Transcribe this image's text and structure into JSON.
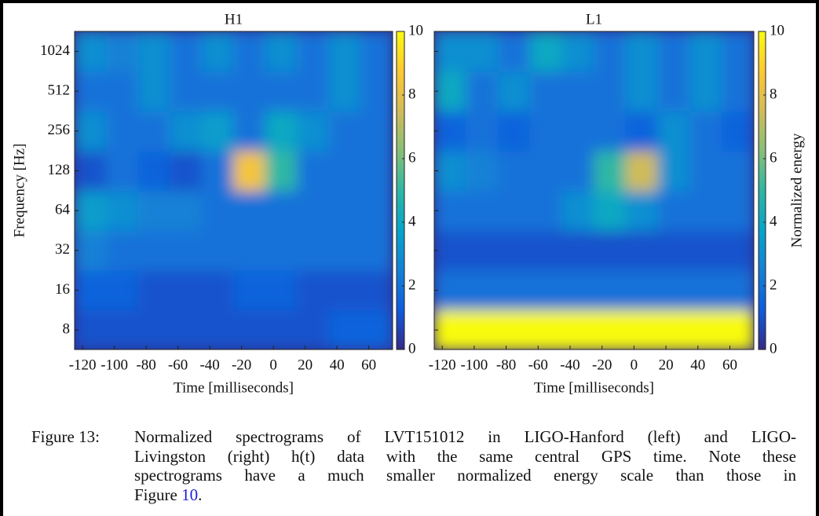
{
  "chart_data": [
    {
      "type": "heatmap",
      "title": "H1",
      "xlabel": "Time [milliseconds]",
      "ylabel": "Frequency [Hz]",
      "x": [
        -115,
        -95,
        -75,
        -55,
        -35,
        -15,
        5,
        25,
        45,
        65
      ],
      "y": [
        8,
        16,
        32,
        64,
        128,
        256,
        512,
        1024
      ],
      "z": [
        [
          1,
          1,
          1,
          1,
          1,
          1,
          1,
          1,
          1.5,
          1.5
        ],
        [
          1.5,
          1.5,
          1,
          1,
          1,
          1.5,
          1.5,
          1,
          1,
          1
        ],
        [
          2.5,
          2,
          2,
          2,
          2,
          2,
          2,
          2,
          2,
          2
        ],
        [
          3.5,
          3,
          2.5,
          2.5,
          2,
          2,
          2,
          2,
          2,
          2
        ],
        [
          1,
          2,
          1.5,
          1,
          2,
          8.5,
          5,
          2,
          2,
          2
        ],
        [
          3,
          2,
          2,
          3,
          3.5,
          2,
          4,
          3,
          2,
          2
        ],
        [
          2,
          2,
          3,
          2,
          2,
          2,
          2,
          2,
          3,
          2
        ],
        [
          3,
          2.5,
          3,
          2,
          3,
          2,
          3,
          2,
          3,
          2
        ]
      ],
      "xlim": [
        -125,
        75
      ],
      "ylim": [
        5.7,
        1450
      ],
      "log_y": true,
      "xticks": [
        -120,
        -100,
        -80,
        -60,
        -40,
        -20,
        0,
        20,
        40,
        60
      ],
      "yticks": [
        8,
        16,
        32,
        64,
        128,
        256,
        512,
        1024
      ],
      "colormap": "parula",
      "clim": [
        0,
        10
      ],
      "cticks": [
        0,
        2,
        4,
        6,
        8,
        10
      ]
    },
    {
      "type": "heatmap",
      "title": "L1",
      "xlabel": "Time [milliseconds]",
      "colorbar_label": "Normalized energy",
      "x": [
        -115,
        -95,
        -75,
        -55,
        -35,
        -15,
        5,
        25,
        45,
        65
      ],
      "y": [
        8,
        16,
        32,
        64,
        128,
        256,
        512,
        1024
      ],
      "z": [
        [
          10,
          10,
          10,
          10,
          10,
          10,
          10,
          10,
          10,
          10
        ],
        [
          2,
          2,
          2,
          2,
          2,
          2,
          2,
          2,
          2,
          2
        ],
        [
          1,
          1,
          1,
          1,
          1,
          1,
          1,
          1,
          1,
          1
        ],
        [
          2,
          2,
          2,
          2,
          3,
          4,
          3,
          2,
          2,
          2
        ],
        [
          3,
          2.5,
          2,
          2,
          2,
          5,
          7.5,
          3,
          2,
          2
        ],
        [
          1.5,
          2,
          1.5,
          2,
          2,
          2,
          1.5,
          3,
          2,
          1.5
        ],
        [
          4,
          2,
          3,
          2,
          2,
          2,
          3,
          2,
          3,
          2
        ],
        [
          3,
          3,
          2,
          4,
          3,
          2,
          3,
          2,
          3,
          2
        ]
      ],
      "xlim": [
        -125,
        75
      ],
      "ylim": [
        5.7,
        1450
      ],
      "log_y": true,
      "xticks": [
        -120,
        -100,
        -80,
        -60,
        -40,
        -20,
        0,
        20,
        40,
        60
      ],
      "yticks": [
        8,
        16,
        32,
        64,
        128,
        256,
        512,
        1024
      ],
      "colormap": "parula",
      "clim": [
        0,
        10
      ],
      "cticks": [
        0,
        2,
        4,
        6,
        8,
        10
      ]
    }
  ],
  "caption": {
    "label": "Figure 13:",
    "lines": [
      "Normalized spectrograms of LVT151012 in LIGO-Hanford (left) and LIGO-",
      "Livingston (right) h(t) data with the same central GPS time.  Note these",
      "spectrograms have a much smaller normalized energy scale than those in"
    ],
    "last_line": "Figure",
    "ref": "10",
    "end": "."
  }
}
